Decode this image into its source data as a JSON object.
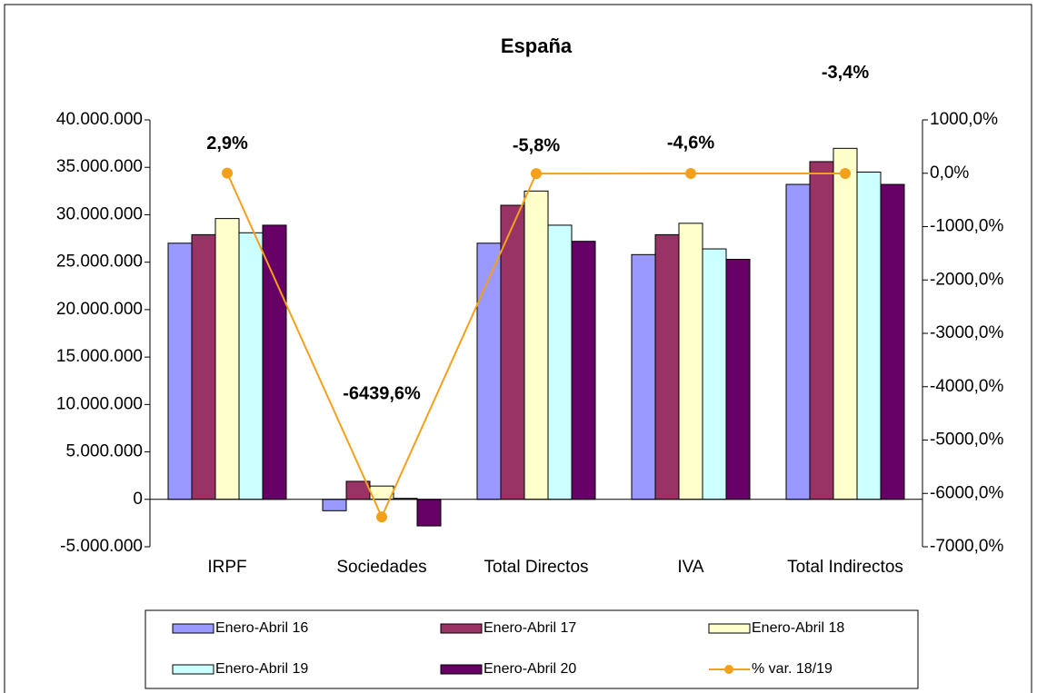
{
  "chart_data": {
    "type": "bar_line",
    "title": "España",
    "categories": [
      "IRPF",
      "Sociedades",
      "Total Directos",
      "IVA",
      "Total Indirectos"
    ],
    "series": [
      {
        "name": "Enero-Abril 16",
        "color": "#9999ff",
        "values": [
          27000000,
          -1200000,
          27000000,
          25800000,
          33200000
        ]
      },
      {
        "name": "Enero-Abril 17",
        "color": "#993366",
        "values": [
          27900000,
          1900000,
          31000000,
          27900000,
          35600000
        ]
      },
      {
        "name": "Enero-Abril 18",
        "color": "#ffffcc",
        "values": [
          29600000,
          1400000,
          32500000,
          29100000,
          37000000
        ]
      },
      {
        "name": "Enero-Abril 19",
        "color": "#ccffff",
        "values": [
          28100000,
          100000,
          28900000,
          26400000,
          34500000
        ]
      },
      {
        "name": "Enero-Abril 20",
        "color": "#660066",
        "values": [
          28900000,
          -2800000,
          27200000,
          25300000,
          33200000
        ]
      },
      {
        "name": "% var. 18/19",
        "color": "#f5a01a",
        "axis": "y2",
        "type": "line",
        "values": [
          2.9,
          -6439.6,
          -5.8,
          -4.6,
          -3.4
        ],
        "value_labels": [
          "2,9%",
          "-6439,6%",
          "-5,8%",
          "-4,6%",
          "-3,4%"
        ]
      }
    ],
    "ylim": [
      -5000000,
      40000000
    ],
    "yticks": [
      {
        "value": -5000000,
        "label": "-5.000.000"
      },
      0,
      {
        "value": 5000000,
        "label": "5.000.000"
      },
      {
        "value": 10000000,
        "label": "10.000.000"
      },
      {
        "value": 15000000,
        "label": "15.000.000"
      },
      {
        "value": 20000000,
        "label": "20.000.000"
      },
      {
        "value": 25000000,
        "label": "25.000.000"
      },
      {
        "value": 30000000,
        "label": "30.000.000"
      },
      {
        "value": 35000000,
        "label": "35.000.000"
      },
      {
        "value": 40000000,
        "label": "40.000.000"
      }
    ],
    "y2lim": [
      -7000,
      1000
    ],
    "y2ticks": [
      {
        "value": -7000,
        "label": "-7000,0%"
      },
      {
        "value": -6000,
        "label": "-6000,0%"
      },
      {
        "value": -5000,
        "label": "-5000,0%"
      },
      {
        "value": -4000,
        "label": "-4000,0%"
      },
      {
        "value": -3000,
        "label": "-3000,0%"
      },
      {
        "value": -2000,
        "label": "-2000,0%"
      },
      {
        "value": -1000,
        "label": "-1000,0%"
      },
      {
        "value": 0,
        "label": "0,0%"
      },
      {
        "value": 1000,
        "label": "1000,0%"
      }
    ],
    "legend": "bottom"
  }
}
